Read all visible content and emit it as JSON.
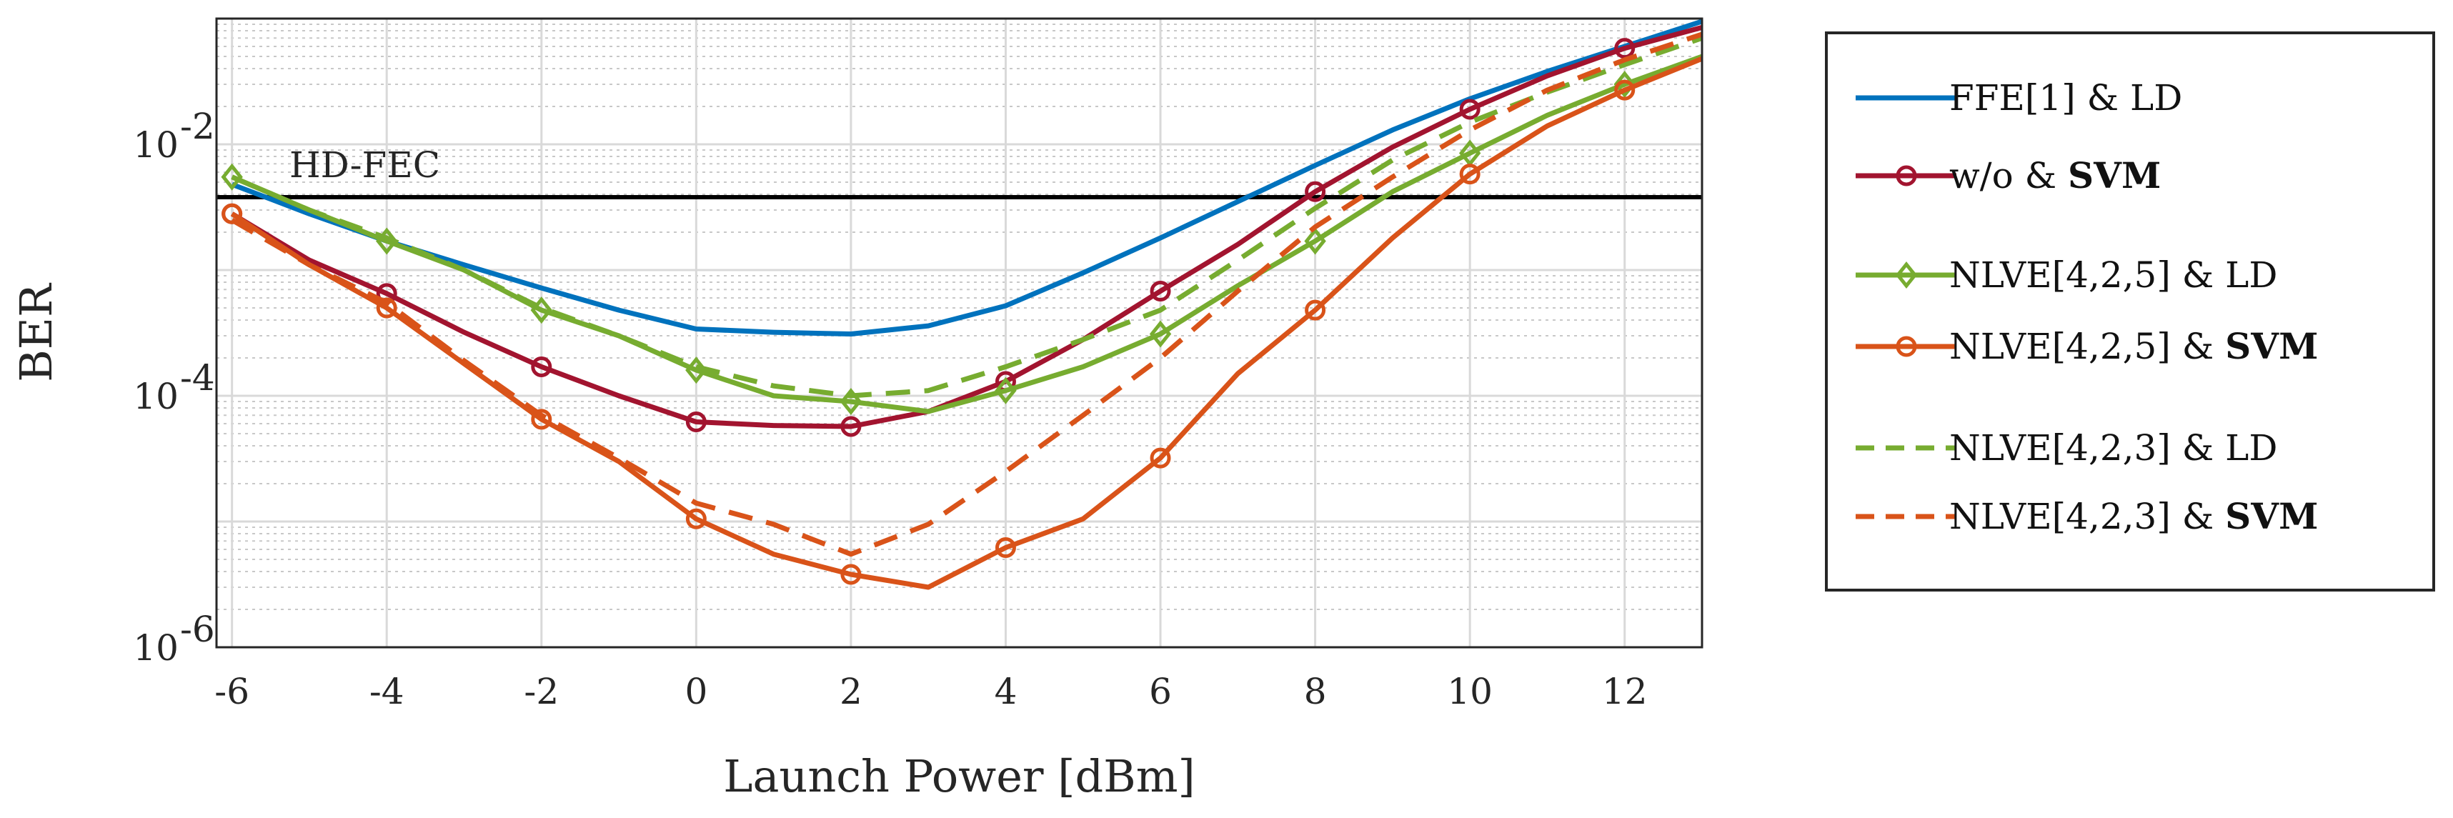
{
  "chart_data": {
    "type": "line",
    "xlabel": "Launch Power [dBm]",
    "ylabel": "BER",
    "xlim": [
      -6.2,
      13
    ],
    "ylim": [
      1e-06,
      0.1
    ],
    "yscale": "log",
    "x_ticks": [
      -6,
      -4,
      -2,
      0,
      2,
      4,
      6,
      8,
      10,
      12
    ],
    "y_ticks": [
      {
        "value": 0.01,
        "base": "10",
        "exp": "-2"
      },
      {
        "value": 0.0001,
        "base": "10",
        "exp": "-4"
      },
      {
        "value": 1e-06,
        "base": "10",
        "exp": "-6"
      }
    ],
    "grid": true,
    "threshold": {
      "label": "HD-FEC",
      "value": 0.0038
    },
    "legend_position": "outside-right",
    "series": [
      {
        "name": "FFE[1] & LD",
        "name_plain": "FFE[1] & LD",
        "name_bold": "",
        "color": "#0072BD",
        "style": "solid",
        "marker": "none",
        "x": [
          -6,
          -5,
          -4,
          -3,
          -2,
          -1,
          0,
          1,
          2,
          3,
          4,
          5,
          6,
          7,
          8,
          9,
          10,
          11,
          12,
          13
        ],
        "y": [
          0.0048,
          0.0028,
          0.0017,
          0.0011,
          0.00072,
          0.00048,
          0.00034,
          0.00032,
          0.00031,
          0.00036,
          0.00052,
          0.00095,
          0.0018,
          0.0035,
          0.0068,
          0.013,
          0.023,
          0.038,
          0.06,
          0.095
        ],
        "marker_x": []
      },
      {
        "name": "w/o & SVM",
        "name_plain": "w/o & ",
        "name_bold": "SVM",
        "color": "#A2142F",
        "style": "solid",
        "marker": "circle",
        "x": [
          -6,
          -5,
          -4,
          -3,
          -2,
          -1,
          0,
          1,
          2,
          3,
          4,
          5,
          6,
          7,
          8,
          9,
          10,
          11,
          12,
          13
        ],
        "y": [
          0.0028,
          0.0012,
          0.00065,
          0.00032,
          0.00017,
          0.0001,
          6.2e-05,
          5.8e-05,
          5.7e-05,
          7.5e-05,
          0.00013,
          0.00028,
          0.00068,
          0.0016,
          0.0042,
          0.0095,
          0.019,
          0.035,
          0.058,
          0.085
        ],
        "marker_x": [
          -6,
          -4,
          -2,
          0,
          2,
          4,
          6,
          8,
          10,
          12
        ]
      },
      {
        "name": "NLVE[4,2,5] & LD",
        "name_plain": "NLVE[4,2,5] & LD",
        "name_bold": "",
        "color": "#77AC30",
        "style": "solid",
        "marker": "diamond",
        "x": [
          -6,
          -5,
          -4,
          -3,
          -2,
          -1,
          0,
          1,
          2,
          3,
          4,
          5,
          6,
          7,
          8,
          9,
          10,
          11,
          12,
          13
        ],
        "y": [
          0.0055,
          0.003,
          0.0017,
          0.001,
          0.00048,
          0.0003,
          0.00016,
          0.0001,
          9e-05,
          7.5e-05,
          0.00011,
          0.00017,
          0.00031,
          0.00075,
          0.0017,
          0.0042,
          0.0085,
          0.017,
          0.03,
          0.05
        ],
        "marker_x": [
          -6,
          -4,
          -2,
          0,
          2,
          4,
          6,
          8,
          10,
          12
        ]
      },
      {
        "name": "NLVE[4,2,5] & SVM",
        "name_plain": "NLVE[4,2,5] & ",
        "name_bold": "SVM",
        "color": "#D95319",
        "style": "solid",
        "marker": "circle",
        "x": [
          -6,
          -5,
          -4,
          -3,
          -2,
          -1,
          0,
          1,
          2,
          3,
          4,
          5,
          6,
          7,
          8,
          9,
          10,
          11,
          12,
          13
        ],
        "y": [
          0.0028,
          0.0011,
          0.0005,
          0.00018,
          6.5e-05,
          3e-05,
          1.05e-05,
          5.5e-06,
          3.8e-06,
          3e-06,
          6.2e-06,
          1.05e-05,
          3.2e-05,
          0.00015,
          0.00048,
          0.0018,
          0.0058,
          0.014,
          0.027,
          0.048
        ],
        "marker_x": [
          -6,
          -4,
          -2,
          0,
          2,
          4,
          6,
          8,
          10,
          12
        ]
      },
      {
        "name": "NLVE[4,2,3] & LD",
        "name_plain": "NLVE[4,2,3] & LD",
        "name_bold": "",
        "color": "#77AC30",
        "style": "dashed",
        "marker": "none",
        "x": [
          -6,
          -5,
          -4,
          -3,
          -2,
          -1,
          0,
          1,
          2,
          3,
          4,
          5,
          6,
          7,
          8,
          9,
          10,
          11,
          12,
          13
        ],
        "y": [
          0.0055,
          0.003,
          0.0018,
          0.001,
          0.0005,
          0.0003,
          0.00017,
          0.00012,
          0.0001,
          0.00011,
          0.00017,
          0.00028,
          0.00048,
          0.0012,
          0.0031,
          0.0075,
          0.015,
          0.026,
          0.043,
          0.07
        ],
        "marker_x": []
      },
      {
        "name": "NLVE[4,2,3] & SVM",
        "name_plain": "NLVE[4,2,3] & ",
        "name_bold": "SVM",
        "color": "#D95319",
        "style": "dashed",
        "marker": "none",
        "x": [
          -6,
          -5,
          -4,
          -3,
          -2,
          -1,
          0,
          1,
          2,
          3,
          4,
          5,
          6,
          7,
          8,
          9,
          10,
          11,
          12,
          13
        ],
        "y": [
          0.0025,
          0.0011,
          0.00055,
          0.00019,
          7e-05,
          3.2e-05,
          1.4e-05,
          9.5e-06,
          5.5e-06,
          9.5e-06,
          2.5e-05,
          7e-05,
          0.0002,
          0.00068,
          0.0022,
          0.0055,
          0.013,
          0.027,
          0.047,
          0.075
        ],
        "marker_x": []
      }
    ]
  }
}
